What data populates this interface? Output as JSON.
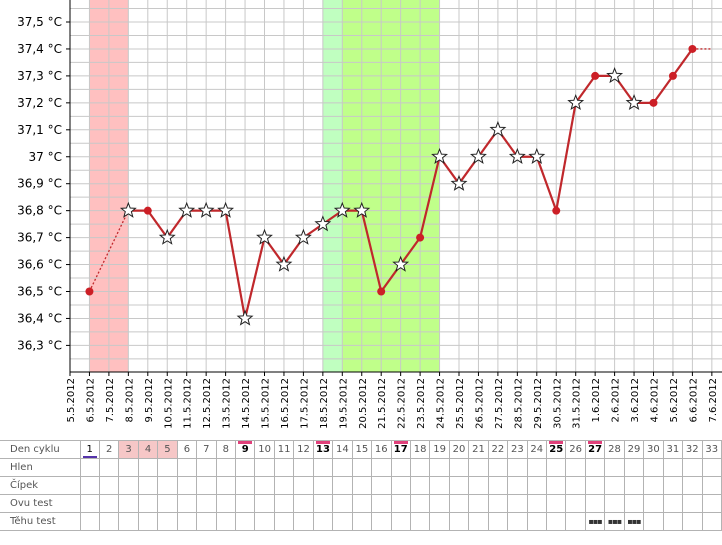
{
  "chart_data": {
    "type": "line",
    "y_unit": "°C",
    "ylim": [
      36.2,
      37.5
    ],
    "y_ticks": [
      "36,3 °C",
      "36,4 °C",
      "36,5 °C",
      "36,6 °C",
      "36,7 °C",
      "36,8 °C",
      "36,9 °C",
      "37 °C",
      "37,1 °C",
      "37,2 °C",
      "37,3 °C",
      "37,4 °C",
      "37,5 °C"
    ],
    "y_tick_values": [
      36.3,
      36.4,
      36.5,
      36.6,
      36.7,
      36.8,
      36.9,
      37.0,
      37.1,
      37.2,
      37.3,
      37.4,
      37.5
    ],
    "x_labels": [
      "5.5.2012",
      "6.5.2012",
      "7.5.2012",
      "8.5.2012",
      "9.5.2012",
      "10.5.2012",
      "11.5.2012",
      "12.5.2012",
      "13.5.2012",
      "14.5.2012",
      "15.5.2012",
      "16.5.2012",
      "17.5.2012",
      "18.5.2012",
      "19.5.2012",
      "20.5.2012",
      "21.5.2012",
      "22.5.2012",
      "23.5.2012",
      "24.5.2012",
      "25.5.2012",
      "26.5.2012",
      "27.5.2012",
      "28.5.2012",
      "29.5.2012",
      "30.5.2012",
      "31.5.2012",
      "1.6.2012",
      "2.6.2012",
      "3.6.2012",
      "4.6.2012",
      "5.6.2012",
      "6.6.2012",
      "7.6.2012"
    ],
    "points": [
      {
        "date": "6.5.2012",
        "value": 36.5,
        "marker": "dot"
      },
      {
        "date": "8.5.2012",
        "value": 36.8,
        "marker": "star"
      },
      {
        "date": "9.5.2012",
        "value": 36.8,
        "marker": "dot"
      },
      {
        "date": "10.5.2012",
        "value": 36.7,
        "marker": "star"
      },
      {
        "date": "11.5.2012",
        "value": 36.8,
        "marker": "star"
      },
      {
        "date": "12.5.2012",
        "value": 36.8,
        "marker": "star"
      },
      {
        "date": "13.5.2012",
        "value": 36.8,
        "marker": "star"
      },
      {
        "date": "14.5.2012",
        "value": 36.4,
        "marker": "star"
      },
      {
        "date": "15.5.2012",
        "value": 36.7,
        "marker": "star"
      },
      {
        "date": "16.5.2012",
        "value": 36.6,
        "marker": "star"
      },
      {
        "date": "17.5.2012",
        "value": 36.7,
        "marker": "star"
      },
      {
        "date": "18.5.2012",
        "value": 36.75,
        "marker": "star"
      },
      {
        "date": "19.5.2012",
        "value": 36.8,
        "marker": "star"
      },
      {
        "date": "20.5.2012",
        "value": 36.8,
        "marker": "star"
      },
      {
        "date": "21.5.2012",
        "value": 36.5,
        "marker": "dot"
      },
      {
        "date": "22.5.2012",
        "value": 36.6,
        "marker": "star"
      },
      {
        "date": "23.5.2012",
        "value": 36.7,
        "marker": "dot"
      },
      {
        "date": "24.5.2012",
        "value": 37.0,
        "marker": "star"
      },
      {
        "date": "25.5.2012",
        "value": 36.9,
        "marker": "star"
      },
      {
        "date": "26.5.2012",
        "value": 37.0,
        "marker": "star"
      },
      {
        "date": "27.5.2012",
        "value": 37.1,
        "marker": "star"
      },
      {
        "date": "28.5.2012",
        "value": 37.0,
        "marker": "star"
      },
      {
        "date": "29.5.2012",
        "value": 37.0,
        "marker": "star"
      },
      {
        "date": "30.5.2012",
        "value": 36.8,
        "marker": "dot"
      },
      {
        "date": "31.5.2012",
        "value": 37.2,
        "marker": "star"
      },
      {
        "date": "1.6.2012",
        "value": 37.3,
        "marker": "dot"
      },
      {
        "date": "2.6.2012",
        "value": 37.3,
        "marker": "star"
      },
      {
        "date": "3.6.2012",
        "value": 37.2,
        "marker": "star"
      },
      {
        "date": "4.6.2012",
        "value": 37.2,
        "marker": "dot"
      },
      {
        "date": "5.6.2012",
        "value": 37.3,
        "marker": "dot"
      },
      {
        "date": "6.6.2012",
        "value": 37.4,
        "marker": "dot"
      },
      {
        "date": "7.6.2012",
        "value": 37.4,
        "marker": "none"
      }
    ],
    "dotted_segments": [
      [
        "6.5.2012",
        "8.5.2012"
      ],
      [
        "17.5.2012",
        "19.5.2012"
      ],
      [
        "21.5.2012",
        "23.5.2012"
      ],
      [
        "6.6.2012",
        "7.6.2012"
      ]
    ],
    "period_band": {
      "from": "6.5.2012",
      "to": "8.5.2012",
      "color": "#ffc0c0"
    },
    "fertile_band_light": {
      "from": "18.5.2012",
      "to": "19.5.2012",
      "color": "#c0ffc0"
    },
    "fertile_band": {
      "from": "19.5.2012",
      "to": "24.5.2012",
      "color": "#c0ff8a"
    },
    "line_color": "#c0282c",
    "grid": true
  },
  "table": {
    "row_labels": [
      "Den cyklu",
      "Hlen",
      "Čípek",
      "Ovu test",
      "Těhu test"
    ],
    "days": [
      "1",
      "2",
      "3",
      "4",
      "5",
      "6",
      "7",
      "8",
      "9",
      "10",
      "11",
      "12",
      "13",
      "14",
      "15",
      "16",
      "17",
      "18",
      "19",
      "20",
      "21",
      "22",
      "23",
      "24",
      "25",
      "26",
      "27",
      "28",
      "29",
      "30",
      "31",
      "32",
      "33"
    ],
    "period_days": [
      "3",
      "4",
      "5"
    ],
    "marked_days": [
      "9",
      "13",
      "17",
      "25",
      "27"
    ],
    "current_day": "1",
    "pregnancy_test_days": [
      "27",
      "28",
      "29"
    ],
    "pregnancy_test_icon": "test-strip-icon",
    "colors": {
      "marker": "#e0407a",
      "current": "#5533aa",
      "period": "#f6c7c7"
    }
  }
}
